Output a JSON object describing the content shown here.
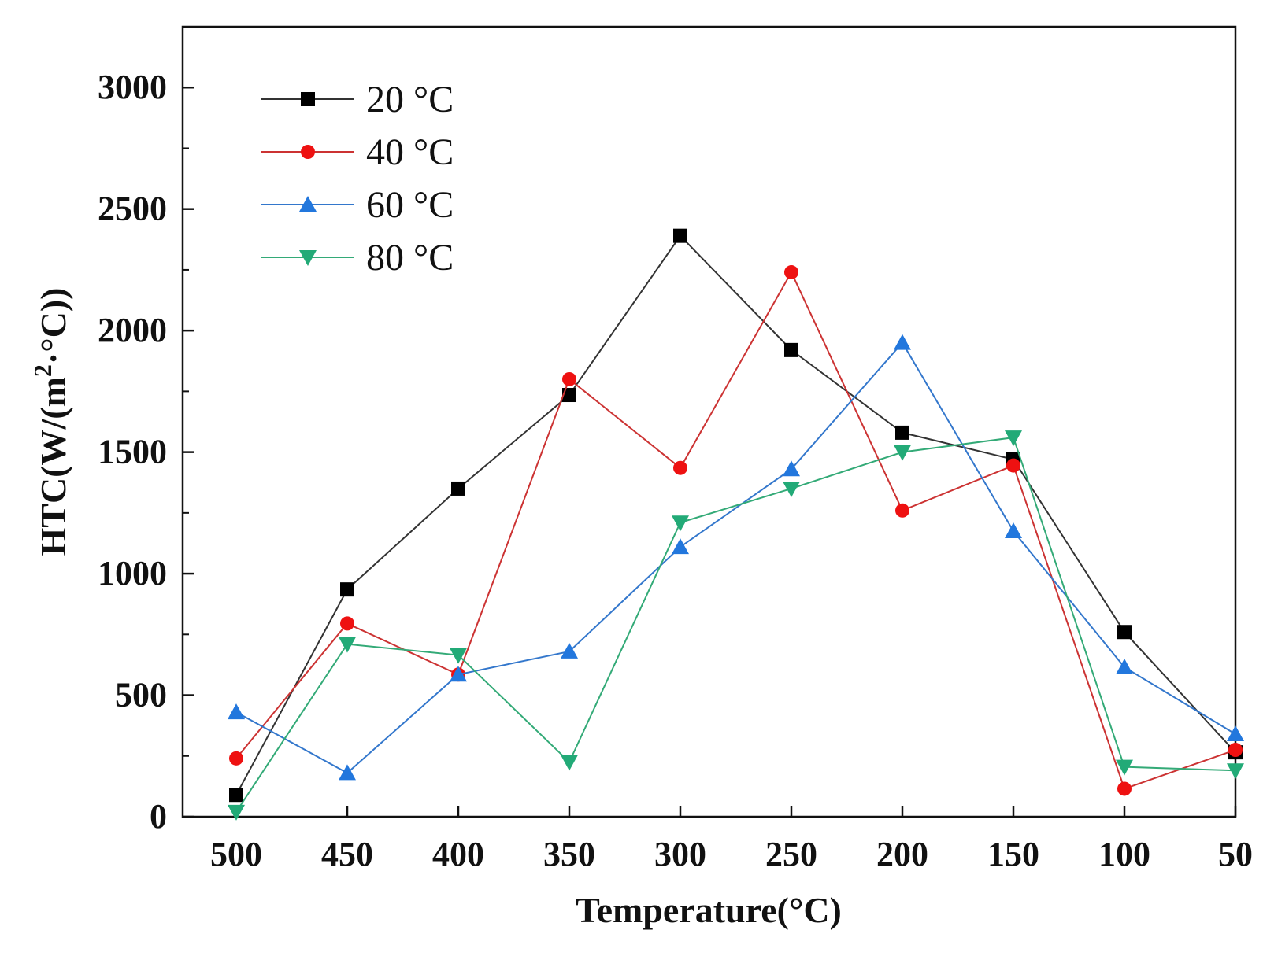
{
  "chart_data": {
    "type": "line",
    "title": "",
    "xlabel": "Temperature(°C)",
    "ylabel_main": "HTC(W/(m",
    "ylabel_sup": "2",
    "ylabel_tail": "·°C))",
    "x": [
      500,
      450,
      400,
      350,
      300,
      250,
      200,
      150,
      100,
      50
    ],
    "x_tick_labels": [
      "500",
      "450",
      "400",
      "350",
      "300",
      "250",
      "200",
      "150",
      "100",
      "50"
    ],
    "y_ticks": [
      0,
      500,
      1000,
      1500,
      2000,
      2500,
      3000
    ],
    "y_tick_labels": [
      "0",
      "500",
      "1000",
      "1500",
      "2000",
      "2500",
      "3000"
    ],
    "ylim": [
      0,
      3250
    ],
    "grid": false,
    "legend_position": "top-left",
    "series": [
      {
        "name": "20 °C",
        "color": "#000000",
        "line_color": "#333333",
        "marker": "square",
        "values": [
          90,
          935,
          1350,
          1735,
          2390,
          1920,
          1580,
          1470,
          760,
          265
        ]
      },
      {
        "name": "40 °C",
        "color": "#ee1111",
        "line_color": "#cc3333",
        "marker": "circle",
        "values": [
          240,
          795,
          585,
          1800,
          1435,
          2240,
          1260,
          1445,
          115,
          275
        ]
      },
      {
        "name": "60 °C",
        "color": "#2277dd",
        "line_color": "#3377cc",
        "marker": "triangle-up",
        "values": [
          430,
          180,
          585,
          680,
          1110,
          1430,
          1950,
          1175,
          615,
          340
        ]
      },
      {
        "name": "80 °C",
        "color": "#22aa77",
        "line_color": "#33aa77",
        "marker": "triangle-down",
        "values": [
          20,
          710,
          665,
          225,
          1210,
          1350,
          1500,
          1560,
          205,
          190
        ]
      }
    ]
  }
}
